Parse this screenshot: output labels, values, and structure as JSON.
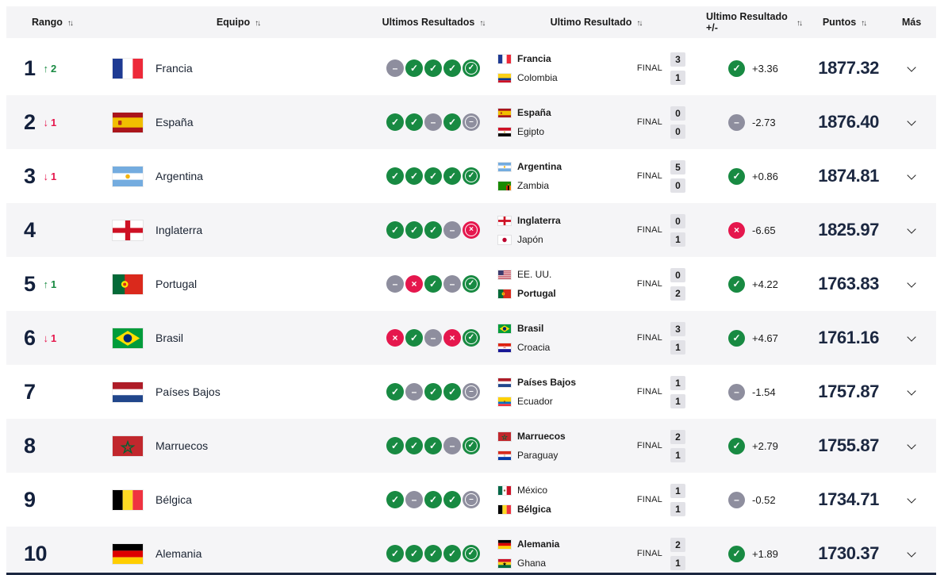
{
  "colors": {
    "win_green": "#188a42",
    "loss_red": "#e5174d",
    "draw_gray": "#8e8e9e",
    "navy_text": "#13203c",
    "row_alt_bg": "#f5f5f7",
    "header_bg": "#f4f4f6",
    "score_box_bg": "#e2e2e7"
  },
  "icons": {
    "sort": "↑↓",
    "up": "↑",
    "down": "↓",
    "win": "✓",
    "draw": "–",
    "loss": "×",
    "more": "chevron-down"
  },
  "table": {
    "headers": [
      {
        "label": "Rango",
        "sortable": true
      },
      {
        "label": "Equipo",
        "sortable": true
      },
      {
        "label": "Ultimos Resultados",
        "sortable": true
      },
      {
        "label": "Ultimo Resultado",
        "sortable": true
      },
      {
        "label": "Ultimo Resultado +/-",
        "sortable": true
      },
      {
        "label": "Puntos",
        "sortable": true
      },
      {
        "label": "Más",
        "sortable": false
      }
    ],
    "rows": [
      {
        "rank": "1",
        "movement": {
          "dir": "up",
          "value": "2"
        },
        "team": {
          "name": "Francia",
          "flag": "fr"
        },
        "form": [
          "draw",
          "win",
          "win",
          "win",
          "win"
        ],
        "last_match": {
          "status": "FINAL",
          "home": {
            "name": "Francia",
            "flag": "fr",
            "bold": true,
            "score": "3"
          },
          "away": {
            "name": "Colombia",
            "flag": "co",
            "bold": false,
            "score": "1"
          }
        },
        "delta": {
          "result": "win",
          "value": "+3.36"
        },
        "points": "1877.32"
      },
      {
        "rank": "2",
        "movement": {
          "dir": "down",
          "value": "1"
        },
        "team": {
          "name": "España",
          "flag": "es"
        },
        "form": [
          "win",
          "win",
          "draw",
          "win",
          "draw"
        ],
        "last_match": {
          "status": "FINAL",
          "home": {
            "name": "España",
            "flag": "es",
            "bold": true,
            "score": "0"
          },
          "away": {
            "name": "Egipto",
            "flag": "eg",
            "bold": false,
            "score": "0"
          }
        },
        "delta": {
          "result": "draw",
          "value": "-2.73"
        },
        "points": "1876.40"
      },
      {
        "rank": "3",
        "movement": {
          "dir": "down",
          "value": "1"
        },
        "team": {
          "name": "Argentina",
          "flag": "ar"
        },
        "form": [
          "win",
          "win",
          "win",
          "win",
          "win"
        ],
        "last_match": {
          "status": "FINAL",
          "home": {
            "name": "Argentina",
            "flag": "ar",
            "bold": true,
            "score": "5"
          },
          "away": {
            "name": "Zambia",
            "flag": "zm",
            "bold": false,
            "score": "0"
          }
        },
        "delta": {
          "result": "win",
          "value": "+0.86"
        },
        "points": "1874.81"
      },
      {
        "rank": "4",
        "movement": null,
        "team": {
          "name": "Inglaterra",
          "flag": "en"
        },
        "form": [
          "win",
          "win",
          "win",
          "draw",
          "loss"
        ],
        "last_match": {
          "status": "FINAL",
          "home": {
            "name": "Inglaterra",
            "flag": "en",
            "bold": true,
            "score": "0"
          },
          "away": {
            "name": "Japón",
            "flag": "jp",
            "bold": false,
            "score": "1"
          }
        },
        "delta": {
          "result": "loss",
          "value": "-6.65"
        },
        "points": "1825.97"
      },
      {
        "rank": "5",
        "movement": {
          "dir": "up",
          "value": "1"
        },
        "team": {
          "name": "Portugal",
          "flag": "pt"
        },
        "form": [
          "draw",
          "loss",
          "win",
          "draw",
          "win"
        ],
        "last_match": {
          "status": "FINAL",
          "home": {
            "name": "EE. UU.",
            "flag": "us",
            "bold": false,
            "score": "0"
          },
          "away": {
            "name": "Portugal",
            "flag": "pt",
            "bold": true,
            "score": "2"
          }
        },
        "delta": {
          "result": "win",
          "value": "+4.22"
        },
        "points": "1763.83"
      },
      {
        "rank": "6",
        "movement": {
          "dir": "down",
          "value": "1"
        },
        "team": {
          "name": "Brasil",
          "flag": "br"
        },
        "form": [
          "loss",
          "win",
          "draw",
          "loss",
          "win"
        ],
        "last_match": {
          "status": "FINAL",
          "home": {
            "name": "Brasil",
            "flag": "br",
            "bold": true,
            "score": "3"
          },
          "away": {
            "name": "Croacia",
            "flag": "hr",
            "bold": false,
            "score": "1"
          }
        },
        "delta": {
          "result": "win",
          "value": "+4.67"
        },
        "points": "1761.16"
      },
      {
        "rank": "7",
        "movement": null,
        "team": {
          "name": "Países Bajos",
          "flag": "nl"
        },
        "form": [
          "win",
          "draw",
          "win",
          "win",
          "draw"
        ],
        "last_match": {
          "status": "FINAL",
          "home": {
            "name": "Países Bajos",
            "flag": "nl",
            "bold": true,
            "score": "1"
          },
          "away": {
            "name": "Ecuador",
            "flag": "ec",
            "bold": false,
            "score": "1"
          }
        },
        "delta": {
          "result": "draw",
          "value": "-1.54"
        },
        "points": "1757.87"
      },
      {
        "rank": "8",
        "movement": null,
        "team": {
          "name": "Marruecos",
          "flag": "ma"
        },
        "form": [
          "win",
          "win",
          "win",
          "draw",
          "win"
        ],
        "last_match": {
          "status": "FINAL",
          "home": {
            "name": "Marruecos",
            "flag": "ma",
            "bold": true,
            "score": "2"
          },
          "away": {
            "name": "Paraguay",
            "flag": "py",
            "bold": false,
            "score": "1"
          }
        },
        "delta": {
          "result": "win",
          "value": "+2.79"
        },
        "points": "1755.87"
      },
      {
        "rank": "9",
        "movement": null,
        "team": {
          "name": "Bélgica",
          "flag": "be"
        },
        "form": [
          "win",
          "draw",
          "win",
          "win",
          "draw"
        ],
        "last_match": {
          "status": "FINAL",
          "home": {
            "name": "México",
            "flag": "mx",
            "bold": false,
            "score": "1"
          },
          "away": {
            "name": "Bélgica",
            "flag": "be",
            "bold": true,
            "score": "1"
          }
        },
        "delta": {
          "result": "draw",
          "value": "-0.52"
        },
        "points": "1734.71"
      },
      {
        "rank": "10",
        "movement": null,
        "team": {
          "name": "Alemania",
          "flag": "de"
        },
        "form": [
          "win",
          "win",
          "win",
          "win",
          "win"
        ],
        "last_match": {
          "status": "FINAL",
          "home": {
            "name": "Alemania",
            "flag": "de",
            "bold": true,
            "score": "2"
          },
          "away": {
            "name": "Ghana",
            "flag": "gh",
            "bold": false,
            "score": "1"
          }
        },
        "delta": {
          "result": "win",
          "value": "+1.89"
        },
        "points": "1730.37"
      }
    ]
  }
}
